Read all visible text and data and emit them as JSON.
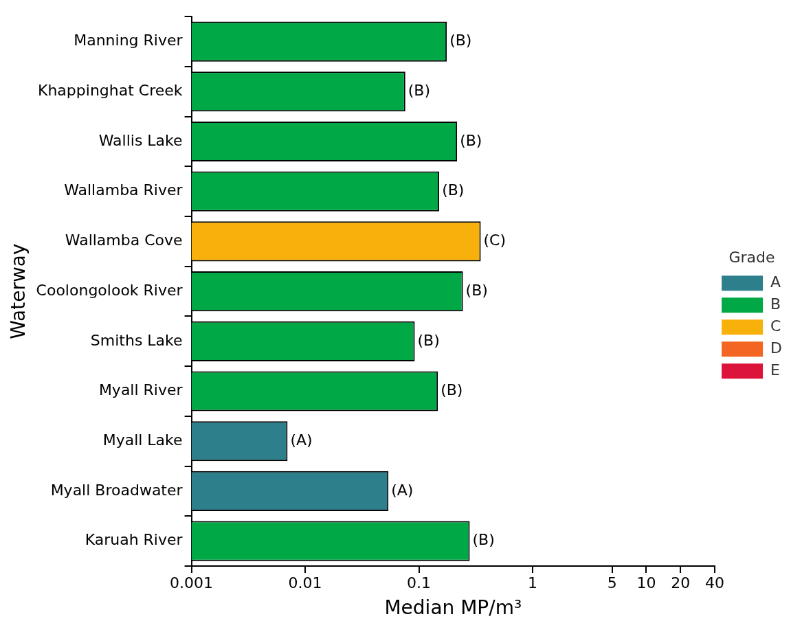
{
  "chart_data": {
    "type": "bar",
    "orientation": "horizontal",
    "xlabel": "Median MP/m³",
    "ylabel": "Waterway",
    "legend_title": "Grade",
    "legend": "right",
    "log": "x",
    "grid": false,
    "categories": [
      "Manning River",
      "Khappinghat Creek",
      "Wallis Lake",
      "Wallamba River",
      "Wallamba Cove",
      "Coolongolook River",
      "Smiths Lake",
      "Myall River",
      "Myall Lake",
      "Myall Broadwater",
      "Karuah River"
    ],
    "xlim": [
      0.001,
      40
    ],
    "xticks": [
      0.001,
      0.01,
      0.1,
      1,
      5,
      10,
      20,
      40
    ],
    "series": [
      {
        "name": "A",
        "color": "#2e7f8c",
        "values": [
          null,
          null,
          null,
          null,
          null,
          null,
          null,
          null,
          0.007,
          0.054,
          null
        ],
        "value_labels": [
          null,
          null,
          null,
          null,
          null,
          null,
          null,
          null,
          "(A)",
          "(A)",
          null
        ]
      },
      {
        "name": "B",
        "color": "#00a846",
        "values": [
          0.176,
          0.076,
          0.217,
          0.151,
          null,
          0.244,
          0.092,
          0.147,
          null,
          null,
          0.28
        ],
        "value_labels": [
          "(B)",
          "(B)",
          "(B)",
          "(B)",
          null,
          "(B)",
          "(B)",
          "(B)",
          null,
          null,
          "(B)"
        ]
      },
      {
        "name": "C",
        "color": "#f8b00b",
        "values": [
          null,
          null,
          null,
          null,
          0.35,
          null,
          null,
          null,
          null,
          null,
          null
        ],
        "value_labels": [
          null,
          null,
          null,
          null,
          "(C)",
          null,
          null,
          null,
          null,
          null,
          null
        ]
      },
      {
        "name": "D",
        "color": "#f26522",
        "values": [
          null,
          null,
          null,
          null,
          null,
          null,
          null,
          null,
          null,
          null,
          null
        ]
      },
      {
        "name": "E",
        "color": "#dc143c",
        "values": [
          null,
          null,
          null,
          null,
          null,
          null,
          null,
          null,
          null,
          null,
          null
        ]
      }
    ]
  }
}
